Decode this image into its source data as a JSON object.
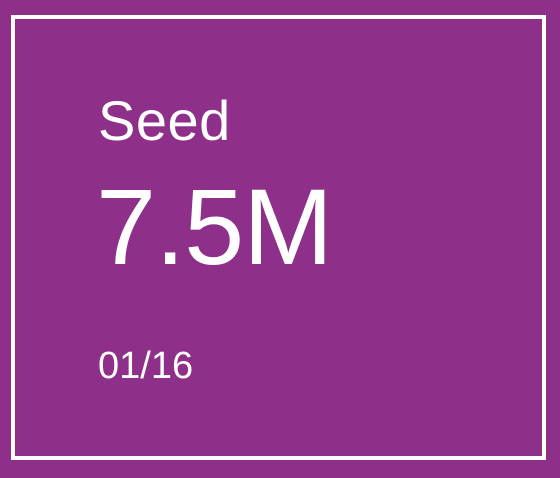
{
  "card": {
    "label": "Seed",
    "amount": "7.5M",
    "date": "01/16",
    "background_color": "#8e2f8a",
    "text_color": "#ffffff"
  }
}
